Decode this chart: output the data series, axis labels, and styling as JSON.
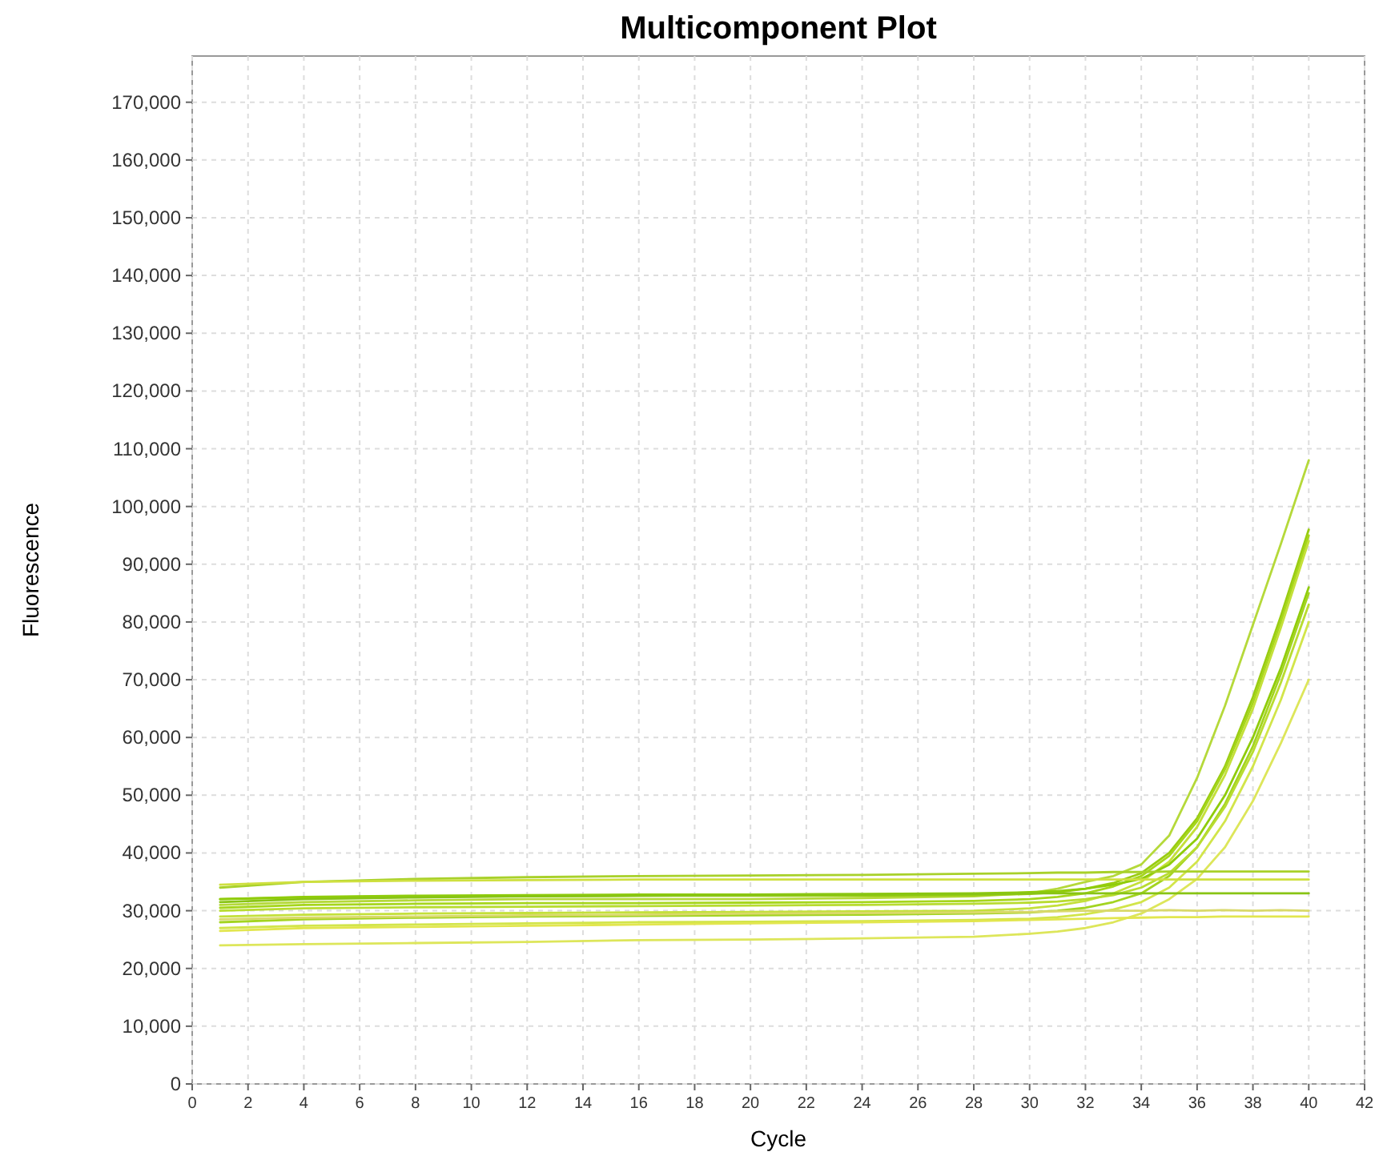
{
  "chart_data": {
    "type": "line",
    "title": "Multicomponent Plot",
    "xlabel": "Cycle",
    "ylabel": "Fluorescence",
    "x": [
      1,
      4,
      8,
      12,
      16,
      20,
      24,
      28,
      30,
      31,
      32,
      33,
      34,
      35,
      36,
      37,
      38,
      39,
      40
    ],
    "xlim": [
      0,
      42
    ],
    "xticks": [
      0,
      2,
      4,
      6,
      8,
      10,
      12,
      14,
      16,
      18,
      20,
      22,
      24,
      26,
      28,
      30,
      32,
      34,
      36,
      38,
      40,
      42
    ],
    "ylim": [
      0,
      178000
    ],
    "yticks": [
      {
        "value": 0,
        "label": "0"
      },
      {
        "value": 10000,
        "label": "10,000"
      },
      {
        "value": 20000,
        "label": "20,000"
      },
      {
        "value": 30000,
        "label": "30,000"
      },
      {
        "value": 40000,
        "label": "40,000"
      },
      {
        "value": 50000,
        "label": "50,000"
      },
      {
        "value": 60000,
        "label": "60,000"
      },
      {
        "value": 70000,
        "label": "70,000"
      },
      {
        "value": 80000,
        "label": "80,000"
      },
      {
        "value": 90000,
        "label": "90,000"
      },
      {
        "value": 100000,
        "label": "100,000"
      },
      {
        "value": 110000,
        "label": "110,000"
      },
      {
        "value": 120000,
        "label": "120,000"
      },
      {
        "value": 130000,
        "label": "130,000"
      },
      {
        "value": 140000,
        "label": "140,000"
      },
      {
        "value": 150000,
        "label": "150,000"
      },
      {
        "value": 160000,
        "label": "160,000"
      },
      {
        "value": 170000,
        "label": "170,000"
      }
    ],
    "grid": true,
    "marker": "none",
    "line_style": "solid",
    "series": [
      {
        "color": "#b5d93a",
        "values": [
          31000,
          31500,
          31800,
          32000,
          32000,
          32000,
          32200,
          32500,
          33000,
          33800,
          35000,
          36000,
          38000,
          43000,
          53000,
          65500,
          79500,
          93500,
          108000
        ]
      },
      {
        "color": "#99cc11",
        "values": [
          32000,
          32300,
          32500,
          32500,
          32600,
          32600,
          32600,
          32700,
          32900,
          33200,
          33800,
          34800,
          36500,
          40000,
          46000,
          55000,
          67000,
          81000,
          96000
        ]
      },
      {
        "color": "#a6d61c",
        "values": [
          30500,
          31000,
          31200,
          31300,
          31300,
          31400,
          31500,
          31700,
          32000,
          32400,
          33000,
          34200,
          36000,
          39500,
          45500,
          54500,
          66000,
          80000,
          95000
        ]
      },
      {
        "color": "#c4e03a",
        "values": [
          29000,
          29300,
          29500,
          29600,
          29700,
          29800,
          29900,
          30000,
          30400,
          30900,
          31700,
          33000,
          35000,
          38500,
          44500,
          53500,
          65000,
          79000,
          94000
        ]
      },
      {
        "color": "#8fcc0a",
        "values": [
          32000,
          32400,
          32600,
          32700,
          32800,
          32800,
          32900,
          33000,
          33200,
          33400,
          33800,
          34500,
          35500,
          38000,
          42500,
          50000,
          60000,
          72000,
          86000
        ]
      },
      {
        "color": "#a3d420",
        "values": [
          28000,
          28500,
          28800,
          29000,
          29100,
          29200,
          29300,
          29500,
          29700,
          30000,
          30500,
          31500,
          33000,
          36000,
          41000,
          48500,
          58500,
          71000,
          85000
        ]
      },
      {
        "color": "#b8dc30",
        "values": [
          30000,
          30400,
          30600,
          30700,
          30800,
          30900,
          31000,
          31200,
          31400,
          31600,
          32000,
          32700,
          34000,
          36500,
          41000,
          48000,
          57500,
          69500,
          83000
        ]
      },
      {
        "color": "#d2e54a",
        "values": [
          27000,
          27400,
          27600,
          27800,
          28000,
          28100,
          28200,
          28400,
          28600,
          28900,
          29400,
          30200,
          31500,
          34000,
          38500,
          45500,
          55000,
          66500,
          80000
        ]
      },
      {
        "color": "#dde65a",
        "values": [
          24000,
          24200,
          24400,
          24600,
          24900,
          25000,
          25200,
          25500,
          26000,
          26400,
          27000,
          28000,
          29500,
          32000,
          35500,
          41000,
          49000,
          59000,
          70000
        ]
      },
      {
        "color": "#a8d12a",
        "values": [
          34000,
          35000,
          35500,
          35800,
          36000,
          36100,
          36200,
          36400,
          36500,
          36600,
          36600,
          36700,
          36700,
          36800,
          36800,
          36800,
          36800,
          36800,
          36800
        ]
      },
      {
        "color": "#cfe040",
        "values": [
          34500,
          35000,
          35200,
          35300,
          35400,
          35400,
          35400,
          35400,
          35400,
          35400,
          35400,
          35400,
          35400,
          35400,
          35400,
          35400,
          35400,
          35400,
          35400
        ]
      },
      {
        "color": "#88c414",
        "values": [
          31500,
          32000,
          32300,
          32500,
          32600,
          32700,
          32800,
          32900,
          33000,
          33000,
          33000,
          33000,
          33000,
          33000,
          33000,
          33000,
          33000,
          33000,
          33000
        ]
      },
      {
        "color": "#d9d96a",
        "values": [
          28500,
          28800,
          29000,
          29200,
          29300,
          29500,
          29600,
          29700,
          29800,
          29900,
          30000,
          30000,
          30000,
          30100,
          30000,
          30100,
          30000,
          30100,
          30000
        ]
      },
      {
        "color": "#e2e64e",
        "values": [
          26500,
          27000,
          27200,
          27400,
          27600,
          27800,
          28000,
          28200,
          28400,
          28500,
          28600,
          28700,
          28800,
          28900,
          28900,
          29000,
          29000,
          29000,
          29000
        ]
      }
    ]
  }
}
